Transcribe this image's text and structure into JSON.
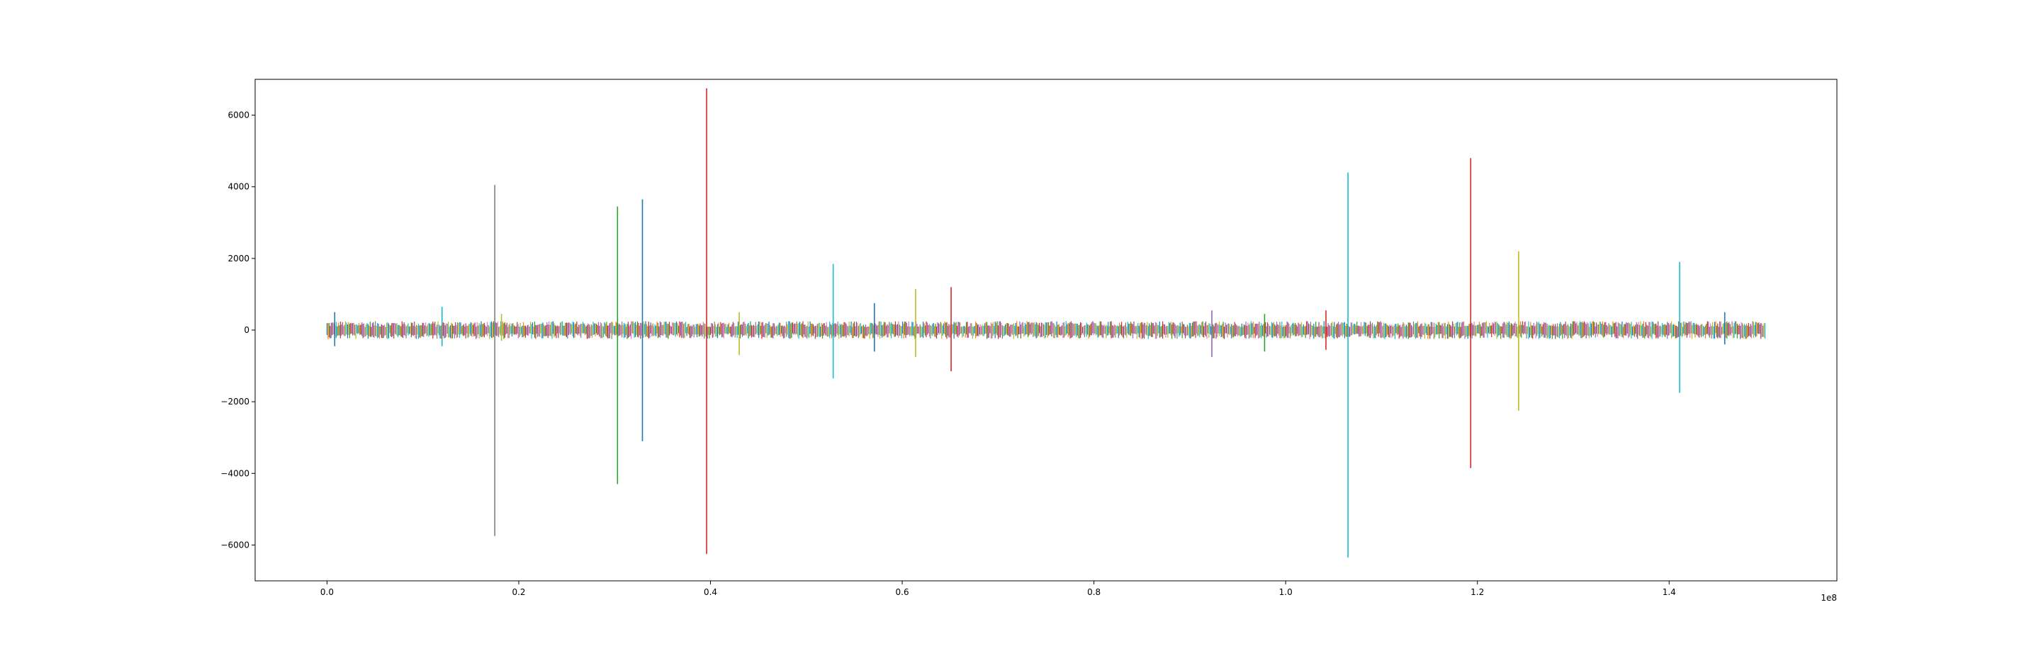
{
  "chart_data": {
    "type": "line",
    "title": "",
    "xlabel": "",
    "ylabel": "",
    "x_offset_label": "1e8",
    "xlim": [
      -7500000,
      157500000
    ],
    "ylim": [
      -7000,
      7000
    ],
    "x_ticks": [
      0,
      20000000,
      40000000,
      60000000,
      80000000,
      100000000,
      120000000,
      140000000
    ],
    "x_tick_labels": [
      "0.0",
      "0.2",
      "0.4",
      "0.6",
      "0.8",
      "1.0",
      "1.2",
      "1.4"
    ],
    "y_ticks": [
      -6000,
      -4000,
      -2000,
      0,
      2000,
      4000,
      6000
    ],
    "y_tick_labels": [
      "−6000",
      "−4000",
      "−2000",
      "0",
      "2000",
      "4000",
      "6000"
    ],
    "grid": false,
    "legend": "none",
    "x_range": [
      0,
      150000000
    ],
    "baseline_amplitude": 250,
    "spikes": [
      {
        "x": 800000,
        "max": 500,
        "min": -450,
        "color": "#1f77b4"
      },
      {
        "x": 12000000,
        "max": 650,
        "min": -450,
        "color": "#17becf"
      },
      {
        "x": 17500000,
        "max": 4050,
        "min": -5750,
        "color": "#7f7f7f"
      },
      {
        "x": 18200000,
        "max": 450,
        "min": -300,
        "color": "#bcbd22"
      },
      {
        "x": 30300000,
        "max": 3450,
        "min": -4300,
        "color": "#2ca02c"
      },
      {
        "x": 32900000,
        "max": 3650,
        "min": -3100,
        "color": "#1f77b4"
      },
      {
        "x": 39600000,
        "max": 6750,
        "min": -6250,
        "color": "#d62728"
      },
      {
        "x": 43000000,
        "max": 500,
        "min": -700,
        "color": "#bcbd22"
      },
      {
        "x": 52800000,
        "max": 1850,
        "min": -1350,
        "color": "#17becf"
      },
      {
        "x": 57100000,
        "max": 750,
        "min": -600,
        "color": "#1f77b4"
      },
      {
        "x": 61400000,
        "max": 1150,
        "min": -750,
        "color": "#bcbd22"
      },
      {
        "x": 65100000,
        "max": 1200,
        "min": -1150,
        "color": "#d62728"
      },
      {
        "x": 92300000,
        "max": 550,
        "min": -750,
        "color": "#9467bd"
      },
      {
        "x": 97800000,
        "max": 450,
        "min": -600,
        "color": "#2ca02c"
      },
      {
        "x": 104200000,
        "max": 550,
        "min": -550,
        "color": "#d62728"
      },
      {
        "x": 106500000,
        "max": 4400,
        "min": -6350,
        "color": "#17becf"
      },
      {
        "x": 119300000,
        "max": 4800,
        "min": -3850,
        "color": "#d62728"
      },
      {
        "x": 124300000,
        "max": 2200,
        "min": -2250,
        "color": "#bcbd22"
      },
      {
        "x": 141100000,
        "max": 1900,
        "min": -1750,
        "color": "#17becf"
      },
      {
        "x": 145800000,
        "max": 500,
        "min": -400,
        "color": "#1f77b4"
      }
    ],
    "series_colors": [
      "#1f77b4",
      "#ff7f0e",
      "#2ca02c",
      "#d62728",
      "#9467bd",
      "#8c564b",
      "#e377c2",
      "#7f7f7f",
      "#bcbd22",
      "#17becf"
    ]
  }
}
